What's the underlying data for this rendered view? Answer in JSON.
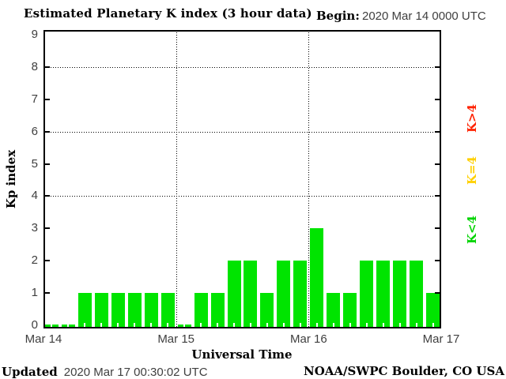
{
  "header": {
    "title": "Estimated Planetary K index (3 hour data)",
    "begin_label": "Begin:",
    "begin_value": "2020 Mar 14 0000 UTC"
  },
  "footer": {
    "updated_label": "Updated",
    "updated_value": "2020 Mar 17 00:30:02 UTC",
    "source": "NOAA/SWPC Boulder, CO USA"
  },
  "chart_data": {
    "type": "bar",
    "title": "Estimated Planetary K index (3 hour data)",
    "xlabel": "Universal Time",
    "ylabel": "Kp index",
    "interval_hours": 3,
    "ylim": [
      0,
      9
    ],
    "yticks": [
      0,
      1,
      2,
      3,
      4,
      5,
      6,
      7,
      8,
      9
    ],
    "grid_y": [
      4,
      6,
      8
    ],
    "grid_x_day_boundaries": [
      "Mar 15",
      "Mar 16"
    ],
    "x_day_labels": [
      "Mar 14",
      "Mar 15",
      "Mar 16",
      "Mar 17"
    ],
    "bar_color": "#00e400",
    "categories": [
      "Mar 14 00",
      "Mar 14 03",
      "Mar 14 06",
      "Mar 14 09",
      "Mar 14 12",
      "Mar 14 15",
      "Mar 14 18",
      "Mar 14 21",
      "Mar 15 00",
      "Mar 15 03",
      "Mar 15 06",
      "Mar 15 09",
      "Mar 15 12",
      "Mar 15 15",
      "Mar 15 18",
      "Mar 15 21",
      "Mar 16 00",
      "Mar 16 03",
      "Mar 16 06",
      "Mar 16 09",
      "Mar 16 12",
      "Mar 16 15",
      "Mar 16 18",
      "Mar 16 21"
    ],
    "values": [
      0,
      0,
      1,
      1,
      1,
      1,
      1,
      1,
      0,
      1,
      1,
      2,
      2,
      1,
      2,
      2,
      3,
      1,
      1,
      2,
      2,
      2,
      2,
      1
    ],
    "legend": [
      {
        "label": "K>4",
        "color": "#ff2200"
      },
      {
        "label": "K=4",
        "color": "#ffd000"
      },
      {
        "label": "K<4",
        "color": "#00d400"
      }
    ],
    "legend_position": "right"
  }
}
